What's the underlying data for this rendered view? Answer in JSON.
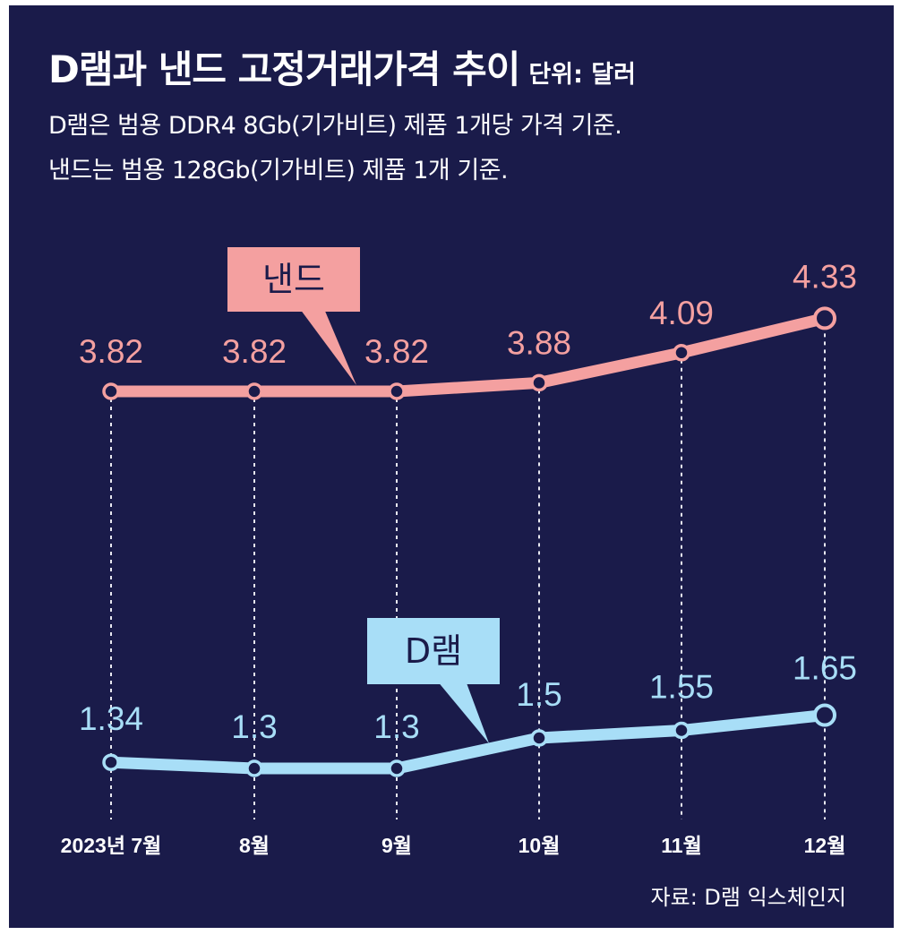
{
  "title": "D램과 낸드 고정거래가격 추이",
  "unit": "단위: 달러",
  "subtitle_lines": [
    "D램은 범용 DDR4 8Gb(기가비트) 제품 1개당 가격 기준.",
    "낸드는 범용 128Gb(기가비트) 제품 1개 기준."
  ],
  "source": "자료: D램 익스체인지",
  "colors": {
    "background": "#1a1b4a",
    "nand": "#f4a0a0",
    "dram": "#a8def7",
    "text": "#ffffff"
  },
  "chart_data": {
    "type": "line",
    "categories": [
      "2023년 7월",
      "8월",
      "9월",
      "10월",
      "11월",
      "12월"
    ],
    "series": [
      {
        "name": "낸드",
        "values": [
          3.82,
          3.82,
          3.82,
          3.88,
          4.09,
          4.33
        ],
        "data_labels": [
          "3.82",
          "3.82",
          "3.82",
          "3.88",
          "4.09",
          "4.33"
        ]
      },
      {
        "name": "D램",
        "values": [
          1.34,
          1.3,
          1.3,
          1.5,
          1.55,
          1.65
        ],
        "data_labels": [
          "1.34",
          "1.3",
          "1.3",
          "1.5",
          "1.55",
          "1.65"
        ]
      }
    ],
    "legend_placement": "callout labels above each line",
    "grid": "dotted vertical guide lines at each month"
  }
}
